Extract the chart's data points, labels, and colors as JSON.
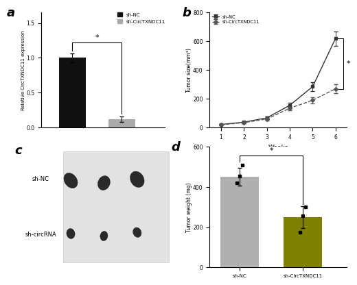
{
  "panel_a": {
    "categories": [
      "sh-NC",
      "sh-CircTXNDC11"
    ],
    "values": [
      1.0,
      0.12
    ],
    "errors": [
      0.06,
      0.04
    ],
    "colors": [
      "#111111",
      "#aaaaaa"
    ],
    "ylabel": "Relative CircTXNDC11 expression",
    "ylim": [
      0,
      1.65
    ],
    "yticks": [
      0.0,
      0.5,
      1.0,
      1.5
    ],
    "significance": "*",
    "legend_labels": [
      "sh-NC",
      "sh-CircTXNDC11"
    ]
  },
  "panel_b": {
    "weeks": [
      1,
      2,
      3,
      4,
      5,
      6
    ],
    "sh_nc_mean": [
      22,
      38,
      68,
      155,
      285,
      620
    ],
    "sh_nc_err": [
      4,
      6,
      10,
      18,
      30,
      50
    ],
    "sh_circ_mean": [
      20,
      35,
      60,
      135,
      190,
      270
    ],
    "sh_circ_err": [
      3,
      6,
      9,
      16,
      22,
      30
    ],
    "ylabel": "Tumor size(mm³)",
    "xlabel": "Weeks",
    "ylim": [
      0,
      800
    ],
    "yticks": [
      0,
      200,
      400,
      600,
      800
    ],
    "significance": "*"
  },
  "panel_c": {
    "sh_nc_label": "sh-NC",
    "sh_circ_label": "sh-circRNA",
    "bg_color": "#d8d8d8",
    "nc_blobs": [
      [
        0.33,
        0.72,
        0.085,
        0.13,
        20
      ],
      [
        0.55,
        0.7,
        0.08,
        0.12,
        -10
      ],
      [
        0.77,
        0.73,
        0.09,
        0.135,
        15
      ]
    ],
    "circ_blobs": [
      [
        0.33,
        0.28,
        0.055,
        0.085,
        5
      ],
      [
        0.55,
        0.26,
        0.05,
        0.08,
        -5
      ],
      [
        0.77,
        0.29,
        0.055,
        0.082,
        10
      ]
    ]
  },
  "panel_d": {
    "categories": [
      "sh-NC",
      "sh-CircTXNDC11"
    ],
    "values": [
      450,
      250
    ],
    "errors": [
      45,
      55
    ],
    "colors": [
      "#b0b0b0",
      "#808000"
    ],
    "individual_nc": [
      420,
      455,
      510
    ],
    "individual_circ": [
      175,
      255,
      300
    ],
    "ylabel": "Tumor weight (mg)",
    "ylim": [
      0,
      600
    ],
    "yticks": [
      0,
      200,
      400,
      600
    ],
    "significance": "*"
  },
  "figure_bg": "#ffffff",
  "panel_labels": [
    "a",
    "b",
    "c",
    "d"
  ],
  "panel_label_fontsize": 13
}
